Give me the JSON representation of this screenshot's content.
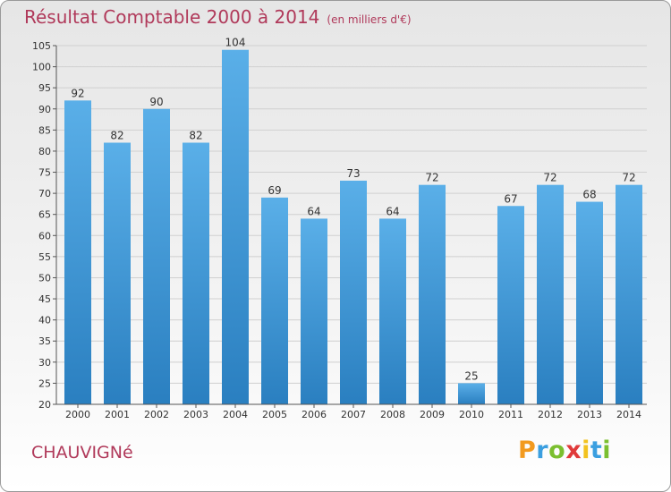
{
  "header": {
    "title": "Résultat Comptable 2000 à 2014",
    "subtitle": "(en milliers d'€)"
  },
  "footer": {
    "commune": "CHAUVIGNé",
    "logo_letters": [
      {
        "char": "P",
        "color": "#f29a1f"
      },
      {
        "char": "r",
        "color": "#3b9fe0"
      },
      {
        "char": "o",
        "color": "#7bbf2f"
      },
      {
        "char": "x",
        "color": "#e03a3a"
      },
      {
        "char": "i",
        "color": "#f2c21f"
      },
      {
        "char": "t",
        "color": "#3b9fe0"
      },
      {
        "char": "i",
        "color": "#7bbf2f"
      }
    ]
  },
  "colors": {
    "bar_top": "#5aafe8",
    "bar_bottom": "#2a7fc0",
    "grid": "#d0d0d0",
    "axis": "#555555",
    "title": "#b0395a"
  },
  "chart_data": {
    "type": "bar",
    "title": "Résultat Comptable 2000 à 2014",
    "subtitle": "(en milliers d'€)",
    "xlabel": "",
    "ylabel": "",
    "ylim": [
      20,
      105
    ],
    "yticks": [
      20,
      25,
      30,
      35,
      40,
      45,
      50,
      55,
      60,
      65,
      70,
      75,
      80,
      85,
      90,
      95,
      100,
      105
    ],
    "grid": true,
    "categories": [
      "2000",
      "2001",
      "2002",
      "2003",
      "2004",
      "2005",
      "2006",
      "2007",
      "2008",
      "2009",
      "2010",
      "2011",
      "2012",
      "2013",
      "2014"
    ],
    "values": [
      92,
      82,
      90,
      82,
      104,
      69,
      64,
      73,
      64,
      72,
      25,
      67,
      72,
      68,
      72
    ]
  }
}
